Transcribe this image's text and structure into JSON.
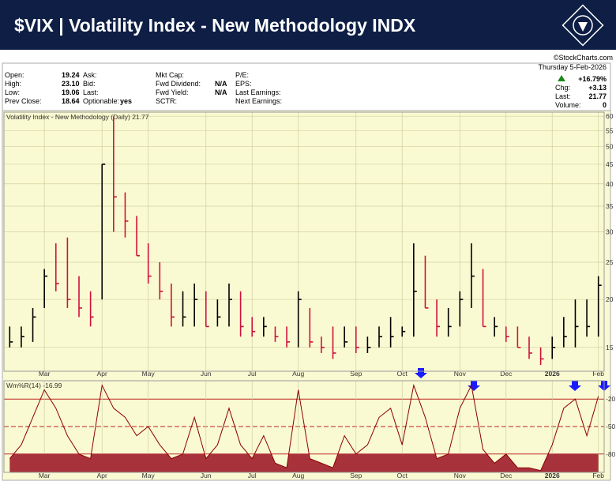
{
  "header": {
    "title": "$VIX | Volatility Index - New Methodology INDX",
    "credit": "©StockCharts.com"
  },
  "info": {
    "columns": [
      [
        {
          "label": "Open:",
          "value": "19.24"
        },
        {
          "label": "High:",
          "value": "23.10"
        },
        {
          "label": "Low:",
          "value": "19.06"
        },
        {
          "label": "Prev Close:",
          "value": "18.64"
        }
      ],
      [
        {
          "label": "Ask:"
        },
        {
          "label": "Bid:"
        },
        {
          "label": "Last:"
        },
        {
          "label": "Optionable:",
          "value": "yes"
        }
      ],
      [
        {
          "label": "Mkt Cap:"
        },
        {
          "label": "Fwd Dividend:",
          "value": "N/A"
        },
        {
          "label": "Fwd Yield:",
          "value": "N/A"
        },
        {
          "label": "SCTR:"
        }
      ],
      [
        {
          "label": "P/E:"
        },
        {
          "label": "EPS:"
        },
        {
          "label": "Last Earnings:"
        },
        {
          "label": "Next Earnings:"
        }
      ]
    ],
    "date": "Thursday 5-Feb-2026",
    "change_pct": "+16.79%",
    "stats": [
      {
        "label": "Chg:",
        "value": "+3.13"
      },
      {
        "label": "Last:",
        "value": "21.77"
      },
      {
        "label": "Volume:",
        "value": "0"
      }
    ]
  },
  "chart_data": [
    {
      "type": "ohlc",
      "title": "Volatility Index - New Methodology (Daily) 21.77",
      "categories": [
        null,
        null,
        null,
        "Mar",
        null,
        null,
        null,
        null,
        "Apr",
        null,
        null,
        null,
        "May",
        null,
        null,
        null,
        null,
        "Jun",
        null,
        null,
        null,
        "Jul",
        null,
        null,
        null,
        "Aug",
        null,
        null,
        null,
        null,
        "Sep",
        null,
        null,
        null,
        "Oct",
        null,
        null,
        null,
        null,
        "Nov",
        null,
        null,
        null,
        "Dec",
        null,
        null,
        null,
        "2026",
        null,
        null,
        null,
        "Feb"
      ],
      "high": [
        17,
        17,
        19,
        24,
        28,
        29,
        23,
        21,
        45,
        60,
        38,
        33,
        28,
        25,
        22,
        21,
        22,
        21,
        20,
        22,
        21,
        18,
        18,
        17,
        17,
        21,
        19,
        16,
        17,
        17,
        17,
        16,
        17,
        18,
        17,
        28,
        26,
        20,
        19,
        21,
        28,
        24,
        18,
        17,
        17,
        16,
        15,
        16,
        18,
        20,
        20,
        23
      ],
      "low": [
        15,
        15,
        15.5,
        19,
        21,
        19,
        18,
        17,
        20,
        30,
        29,
        26,
        22,
        20,
        17,
        17,
        17,
        17,
        17,
        17,
        16,
        16,
        16,
        15.5,
        15,
        15,
        15,
        14.5,
        14,
        15,
        14.5,
        14.5,
        15,
        15,
        16,
        16,
        19,
        16,
        16,
        17,
        19,
        17,
        16,
        15.5,
        15,
        14,
        13.5,
        14,
        15,
        15,
        16,
        16
      ],
      "close": [
        15.5,
        16,
        18,
        23,
        22,
        20,
        19,
        18,
        45,
        37,
        32,
        26,
        23,
        21,
        18,
        18,
        20,
        17,
        18,
        20,
        17,
        16.5,
        17,
        16,
        15.5,
        20,
        15.5,
        15,
        14.5,
        15.5,
        15,
        15,
        16,
        16,
        16.5,
        21,
        19,
        17,
        17,
        20,
        23,
        17,
        17,
        16,
        15,
        14.5,
        14,
        15,
        16,
        17,
        17,
        21.77
      ],
      "up_color": "#000000",
      "down_color": "#d0103a",
      "log_scale": true,
      "ylim": [
        13,
        61.5
      ],
      "yticks": [
        15,
        20,
        25,
        30,
        35,
        40,
        45,
        50,
        55,
        60
      ],
      "grid": true
    },
    {
      "type": "line",
      "title": "Wm%R(14) -16.99",
      "categories": [
        null,
        null,
        null,
        "Mar",
        null,
        null,
        null,
        null,
        "Apr",
        null,
        null,
        null,
        "May",
        null,
        null,
        null,
        null,
        "Jun",
        null,
        null,
        null,
        "Jul",
        null,
        null,
        null,
        "Aug",
        null,
        null,
        null,
        null,
        "Sep",
        null,
        null,
        null,
        "Oct",
        null,
        null,
        null,
        null,
        "Nov",
        null,
        null,
        null,
        "Dec",
        null,
        null,
        null,
        "2026",
        null,
        null,
        null,
        "Feb"
      ],
      "values": [
        -85,
        -70,
        -40,
        -10,
        -30,
        -60,
        -80,
        -85,
        -5,
        -30,
        -40,
        -60,
        -50,
        -70,
        -85,
        -80,
        -40,
        -85,
        -70,
        -30,
        -70,
        -85,
        -60,
        -90,
        -95,
        -10,
        -85,
        -90,
        -95,
        -60,
        -80,
        -70,
        -40,
        -30,
        -70,
        -5,
        -40,
        -85,
        -80,
        -30,
        -5,
        -75,
        -90,
        -80,
        -95,
        -95,
        -98,
        -70,
        -30,
        -20,
        -60,
        -16.99
      ],
      "color": "#8b0000",
      "fill_color": "#a8323c",
      "threshold": -80,
      "ylim": [
        -100,
        0
      ],
      "yticks": [
        -20,
        -50,
        -80
      ],
      "grid": true
    }
  ]
}
